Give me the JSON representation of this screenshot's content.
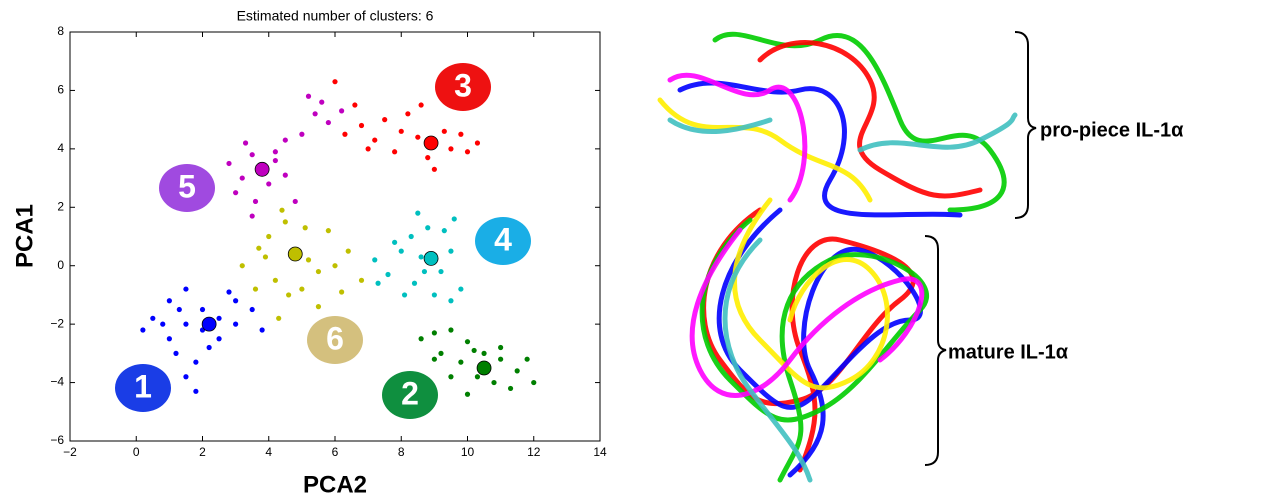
{
  "chart_data": {
    "type": "scatter",
    "title": "Estimated number of clusters: 6",
    "x_label": "PCA2",
    "y_label": "PCA1",
    "xlim": [
      -2,
      14
    ],
    "ylim": [
      -6,
      8
    ],
    "xticks": [
      {
        "value": -2,
        "label": "−2"
      },
      0,
      2,
      4,
      6,
      8,
      10,
      12,
      14
    ],
    "yticks": [
      {
        "value": -6,
        "label": "−6"
      },
      {
        "value": -4,
        "label": "−4"
      },
      {
        "value": -2,
        "label": "−2"
      },
      0,
      2,
      4,
      6,
      8
    ],
    "series": [
      {
        "label": "1",
        "color": "#0000ff",
        "label_color": "#1a3de6",
        "center": [
          2.2,
          -2.0
        ],
        "x": [
          0.5,
          1,
          1.5,
          2,
          2.5,
          3,
          3.5,
          0.2,
          1,
          1.5,
          2,
          2.5,
          3,
          3.8,
          1.2,
          1.8,
          2.2,
          1.5,
          1.8,
          0.8,
          2.8,
          1.3
        ],
        "y": [
          -1.8,
          -1.2,
          -0.8,
          -1.5,
          -1.8,
          -1.2,
          -1.5,
          -2.2,
          -2.5,
          -2,
          -2.2,
          -2.5,
          -2,
          -2.2,
          -3,
          -3.3,
          -2.8,
          -3.8,
          -4.3,
          -2,
          -0.9,
          -1.5
        ]
      },
      {
        "label": "2",
        "color": "#007f00",
        "label_color": "#0f8f3f",
        "center": [
          10.5,
          -3.5
        ],
        "x": [
          9,
          9.5,
          10,
          10.5,
          11,
          11.5,
          12,
          9.2,
          9.8,
          10.3,
          10.8,
          11.3,
          10,
          9.5,
          11,
          10.5,
          9,
          11.8,
          10.2,
          8.6
        ],
        "y": [
          -2.3,
          -2.2,
          -2.6,
          -3,
          -3.2,
          -3.6,
          -4,
          -3,
          -3.3,
          -3.8,
          -4,
          -4.2,
          -4.4,
          -3.8,
          -2.8,
          -3.5,
          -3.2,
          -3.2,
          -2.9,
          -2.5
        ]
      },
      {
        "label": "3",
        "color": "#ff0000",
        "label_color": "#ee1111",
        "center": [
          8.9,
          4.2
        ],
        "x": [
          6.3,
          6.8,
          7.2,
          7.5,
          8,
          8.5,
          9,
          9.5,
          10,
          10.3,
          8.2,
          7.8,
          8.8,
          9.3,
          6.6,
          6,
          7,
          9.8,
          8.6,
          9
        ],
        "y": [
          4.5,
          4.8,
          4.3,
          5,
          4.6,
          4.4,
          4.2,
          4,
          3.9,
          4.2,
          5.2,
          3.9,
          3.7,
          4.6,
          5.5,
          6.3,
          4,
          4.5,
          5.5,
          3.3
        ]
      },
      {
        "label": "4",
        "color": "#00bfbf",
        "label_color": "#1aaee6",
        "center": [
          8.9,
          0.25
        ],
        "x": [
          7.2,
          7.6,
          8,
          8.3,
          8.6,
          8.9,
          9.2,
          9.5,
          9.8,
          8.5,
          8.8,
          9.3,
          8.4,
          9,
          9.5,
          7.3,
          8.1,
          9.6,
          8.7,
          7.8
        ],
        "y": [
          0.2,
          -0.3,
          0.5,
          1,
          0.3,
          0.2,
          -0.2,
          0.5,
          -0.8,
          1.8,
          1.3,
          1.2,
          -0.6,
          -1,
          -1.2,
          -0.6,
          -1,
          1.6,
          -0.2,
          0.8
        ]
      },
      {
        "label": "5",
        "color": "#bf00bf",
        "label_color": "#a04ae0",
        "center": [
          3.8,
          3.3
        ],
        "x": [
          2.8,
          3.2,
          3.5,
          3.8,
          4.2,
          4.5,
          3,
          3.6,
          4,
          3.3,
          4.5,
          5,
          5.4,
          5.8,
          5.2,
          5.6,
          6.2,
          3.5,
          4.8,
          4.2
        ],
        "y": [
          3.5,
          3,
          3.8,
          3.3,
          3.6,
          3.1,
          2.5,
          2.2,
          2.8,
          4.2,
          4.3,
          4.5,
          5.2,
          4.9,
          5.8,
          5.6,
          5.3,
          1.7,
          2.2,
          3.9
        ]
      },
      {
        "label": "6",
        "color": "#bfbf00",
        "label_color": "#d4c07e",
        "center": [
          4.8,
          0.4
        ],
        "x": [
          3.2,
          3.7,
          4,
          4.5,
          4.8,
          5.2,
          5.5,
          6,
          6.4,
          6.8,
          4.2,
          4.6,
          5,
          3.6,
          5.8,
          4.4,
          5.5,
          6.2,
          3.9,
          5.1,
          4.3
        ],
        "y": [
          0,
          0.6,
          1,
          1.5,
          0.4,
          0.2,
          -0.2,
          0,
          0.5,
          -0.5,
          -0.5,
          -1,
          -0.8,
          -0.8,
          1.2,
          1.9,
          -1.4,
          -0.9,
          0.3,
          1.3,
          -1.8
        ]
      }
    ],
    "annotations": [
      "pro-piece IL-1α",
      "mature IL-1α"
    ]
  }
}
